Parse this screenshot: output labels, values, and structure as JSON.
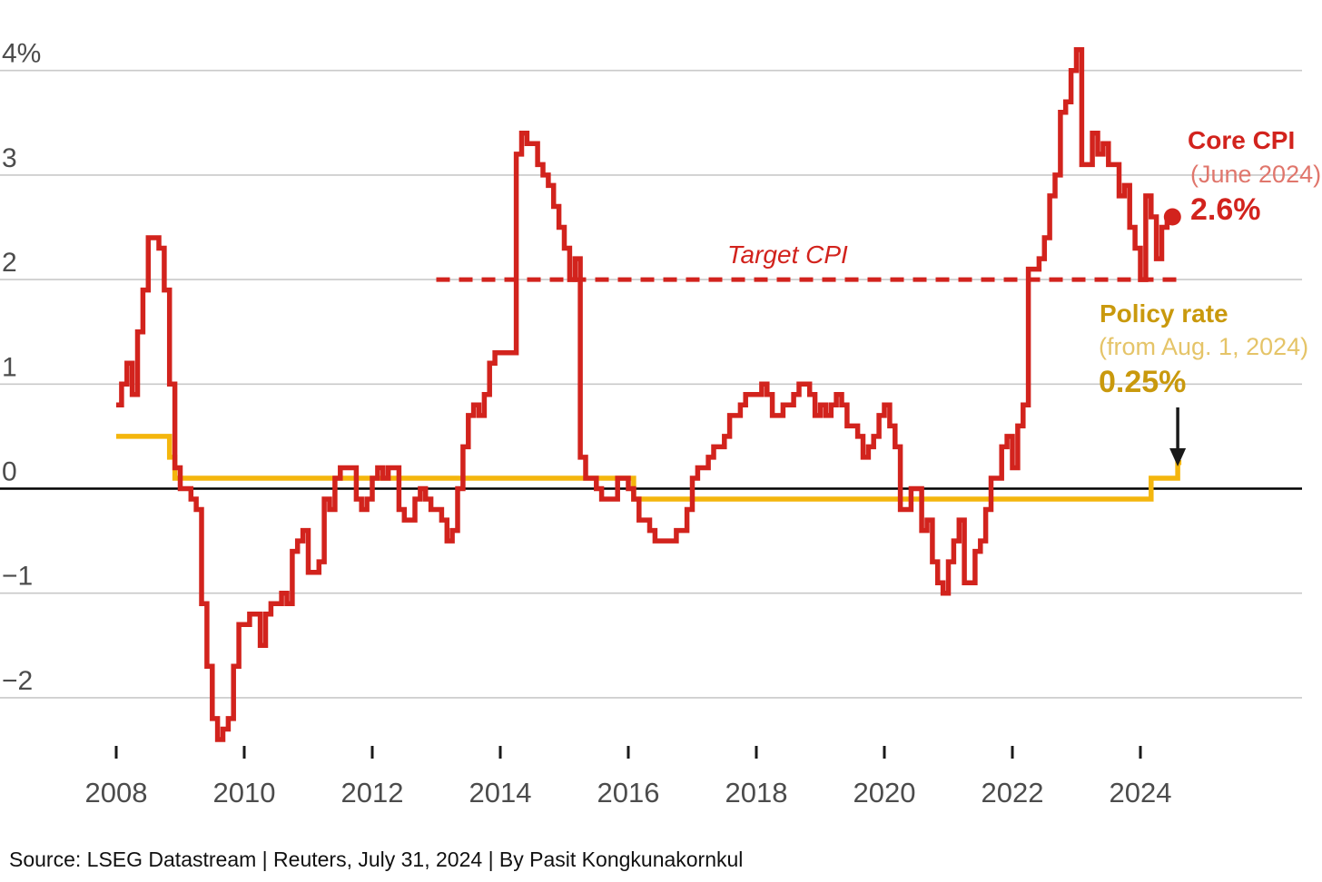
{
  "source_line": "Source: LSEG Datastream | Reuters, July 31, 2024 | By Pasit Kongkunakornkul",
  "annotations": {
    "core_cpi": {
      "title": "Core CPI",
      "subtitle": "(June 2024)",
      "value": "2.6%",
      "color": "#d2231d",
      "subtitle_color": "#e0766c"
    },
    "policy_rate": {
      "title": "Policy rate",
      "subtitle": "(from Aug. 1, 2024)",
      "value": "0.25%",
      "color": "#c9990d",
      "subtitle_color": "#e5c468"
    },
    "target_cpi_label": "Target CPI"
  },
  "chart_data": {
    "type": "line",
    "description": "Japan core CPI year-on-year % (monthly step line) versus Bank of Japan policy rate %",
    "grid": true,
    "legend_position": "right-annotations",
    "x_axis": {
      "tick_years": [
        2008,
        2010,
        2012,
        2014,
        2016,
        2018,
        2020,
        2022,
        2024
      ],
      "tick_labels": [
        "2008",
        "2010",
        "2012",
        "2014",
        "2016",
        "2018",
        "2020",
        "2022",
        "2024"
      ],
      "range": [
        2006.2,
        2026.8
      ]
    },
    "y_axis": {
      "unit": "%",
      "tick_values": [
        4,
        3,
        2,
        1,
        0,
        -1,
        -2
      ],
      "tick_labels": [
        "4%",
        "3",
        "2",
        "1",
        "0",
        "−1",
        "−2"
      ],
      "range": [
        -2.7,
        4.4
      ]
    },
    "target_line": {
      "label": "Target CPI",
      "value": 2,
      "from": "2013-01",
      "to": "2024-08",
      "style": "dashed",
      "color": "#d2231d"
    },
    "series": [
      {
        "name": "Core CPI",
        "color": "#d2231d",
        "type": "step",
        "frequency": "monthly",
        "start": "2008-01",
        "end": "2024-06",
        "end_value_label": "2.6%",
        "end_dot": true,
        "values": [
          0.8,
          1.0,
          1.2,
          0.9,
          1.5,
          1.9,
          2.4,
          2.4,
          2.3,
          1.9,
          1.0,
          0.2,
          0.0,
          0.0,
          -0.1,
          -0.2,
          -1.1,
          -1.7,
          -2.2,
          -2.4,
          -2.3,
          -2.2,
          -1.7,
          -1.3,
          -1.3,
          -1.2,
          -1.2,
          -1.5,
          -1.2,
          -1.1,
          -1.1,
          -1.0,
          -1.1,
          -0.6,
          -0.5,
          -0.4,
          -0.8,
          -0.8,
          -0.7,
          -0.1,
          -0.2,
          0.1,
          0.2,
          0.2,
          0.2,
          -0.1,
          -0.2,
          -0.1,
          0.1,
          0.2,
          0.1,
          0.2,
          0.2,
          -0.2,
          -0.3,
          -0.3,
          -0.1,
          0.0,
          -0.1,
          -0.2,
          -0.2,
          -0.3,
          -0.5,
          -0.4,
          0.0,
          0.4,
          0.7,
          0.8,
          0.7,
          0.9,
          1.2,
          1.3,
          1.3,
          1.3,
          1.3,
          3.2,
          3.4,
          3.3,
          3.3,
          3.1,
          3.0,
          2.9,
          2.7,
          2.5,
          2.3,
          2.0,
          2.2,
          0.3,
          0.1,
          0.1,
          0.0,
          -0.1,
          -0.1,
          -0.1,
          0.1,
          0.1,
          0.0,
          -0.1,
          -0.3,
          -0.3,
          -0.4,
          -0.5,
          -0.5,
          -0.5,
          -0.5,
          -0.4,
          -0.4,
          -0.2,
          0.1,
          0.2,
          0.2,
          0.3,
          0.4,
          0.4,
          0.5,
          0.7,
          0.7,
          0.8,
          0.9,
          0.9,
          0.9,
          1.0,
          0.9,
          0.7,
          0.7,
          0.8,
          0.8,
          0.9,
          1.0,
          1.0,
          0.9,
          0.7,
          0.8,
          0.7,
          0.8,
          0.9,
          0.8,
          0.6,
          0.6,
          0.5,
          0.3,
          0.4,
          0.5,
          0.7,
          0.8,
          0.6,
          0.4,
          -0.2,
          -0.2,
          0.0,
          0.0,
          -0.4,
          -0.3,
          -0.7,
          -0.9,
          -1.0,
          -0.7,
          -0.5,
          -0.3,
          -0.9,
          -0.9,
          -0.6,
          -0.5,
          -0.2,
          0.1,
          0.1,
          0.4,
          0.5,
          0.2,
          0.6,
          0.8,
          2.1,
          2.1,
          2.2,
          2.4,
          2.8,
          3.0,
          3.6,
          3.7,
          4.0,
          4.2,
          3.1,
          3.1,
          3.4,
          3.2,
          3.3,
          3.1,
          3.1,
          2.8,
          2.9,
          2.5,
          2.3,
          2.0,
          2.8,
          2.6,
          2.2,
          2.5,
          2.6
        ]
      },
      {
        "name": "Policy rate",
        "color": "#f4b60d",
        "type": "step",
        "end": "2024-08",
        "end_value_label": "0.25%",
        "segments": [
          [
            "2008-01",
            0.5
          ],
          [
            "2008-11",
            0.3
          ],
          [
            "2008-12",
            0.1
          ],
          [
            "2016-02",
            -0.1
          ],
          [
            "2024-03",
            0.1
          ],
          [
            "2024-08",
            0.25
          ]
        ]
      }
    ]
  }
}
